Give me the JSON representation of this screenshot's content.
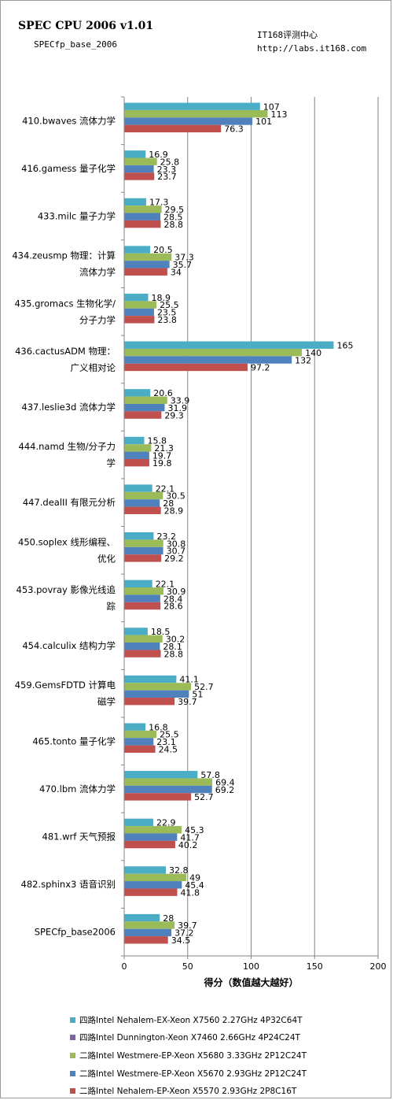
{
  "header": {
    "title": "SPEC CPU 2006 v1.01",
    "subtitle": "SPECfp_base_2006",
    "brand": "IT168评测中心",
    "url": "http://labs.it168.com"
  },
  "colors": {
    "series": [
      "#4bacc6",
      "#8064a2",
      "#9bbb59",
      "#4f81bd",
      "#c0504d"
    ],
    "grid": "#868686",
    "axis": "#868686"
  },
  "chart_data": {
    "type": "bar",
    "orientation": "horizontal",
    "categories": [
      [
        "410.bwaves 流体力学"
      ],
      [
        "416.gamess 量子化学"
      ],
      [
        "433.milc 量子力学"
      ],
      [
        "434.zeusmp 物理：计算",
        "流体力学"
      ],
      [
        "435.gromacs 生物化学/",
        "分子力学"
      ],
      [
        "436.cactusADM 物理：",
        "广义相对论"
      ],
      [
        "437.leslie3d 流体力学"
      ],
      [
        "444.namd 生物/分子力",
        "学"
      ],
      [
        "447.dealII 有限元分析"
      ],
      [
        "450.soplex 线形编程、",
        "优化"
      ],
      [
        "453.povray 影像光线追",
        "踪"
      ],
      [
        "454.calculix 结构力学"
      ],
      [
        "459.GemsFDTD 计算电",
        "磁学"
      ],
      [
        "465.tonto 量子化学"
      ],
      [
        "470.lbm 流体力学"
      ],
      [
        "481.wrf 天气预报"
      ],
      [
        "482.sphinx3 语音识别"
      ],
      [
        "SPECfp_base2006"
      ]
    ],
    "series": [
      {
        "name": "四路Intel Nehalem-EX-Xeon  X7560 2.27GHz 4P32C64T",
        "values": [
          107,
          16.9,
          17.3,
          20.5,
          18.9,
          165,
          20.6,
          15.8,
          22.1,
          23.2,
          22.1,
          18.5,
          41.1,
          16.8,
          57.8,
          22.9,
          32.8,
          28
        ]
      },
      {
        "name": "四路Intel Dunnington-Xeon  X7460 2.66GHz 4P24C24T",
        "values": [
          null,
          null,
          null,
          null,
          null,
          null,
          null,
          null,
          null,
          null,
          null,
          null,
          null,
          null,
          null,
          null,
          null,
          null
        ]
      },
      {
        "name": "二路Intel Westmere-EP-Xeon  X5680 3.33GHz 2P12C24T",
        "values": [
          113,
          25.8,
          29.5,
          37.3,
          25.5,
          140,
          33.9,
          21.3,
          30.5,
          30.8,
          30.9,
          30.2,
          52.7,
          25.5,
          69.4,
          45.3,
          49,
          39.7
        ]
      },
      {
        "name": "二路Intel Westmere-EP-Xeon  X5670 2.93GHz 2P12C24T",
        "values": [
          101,
          23.3,
          28.5,
          35.7,
          23.5,
          132,
          31.9,
          19.7,
          28,
          30.7,
          28.4,
          28.1,
          51,
          23.1,
          69.2,
          41.7,
          45.4,
          37.2
        ]
      },
      {
        "name": "二路Intel Nehalem-EP-Xeon  X5570 2.93GHz 2P8C16T",
        "values": [
          76.3,
          23.7,
          28.8,
          34,
          23.8,
          97.2,
          29.3,
          19.8,
          28.9,
          29.2,
          28.6,
          28.8,
          39.7,
          24.5,
          52.7,
          40.2,
          41.8,
          34.5
        ]
      }
    ],
    "xlabel": "得分（数值越大越好）",
    "xlim": [
      0,
      200
    ],
    "xticks": [
      0,
      50,
      100,
      150,
      200
    ],
    "grid": true,
    "legend_position": "bottom"
  }
}
